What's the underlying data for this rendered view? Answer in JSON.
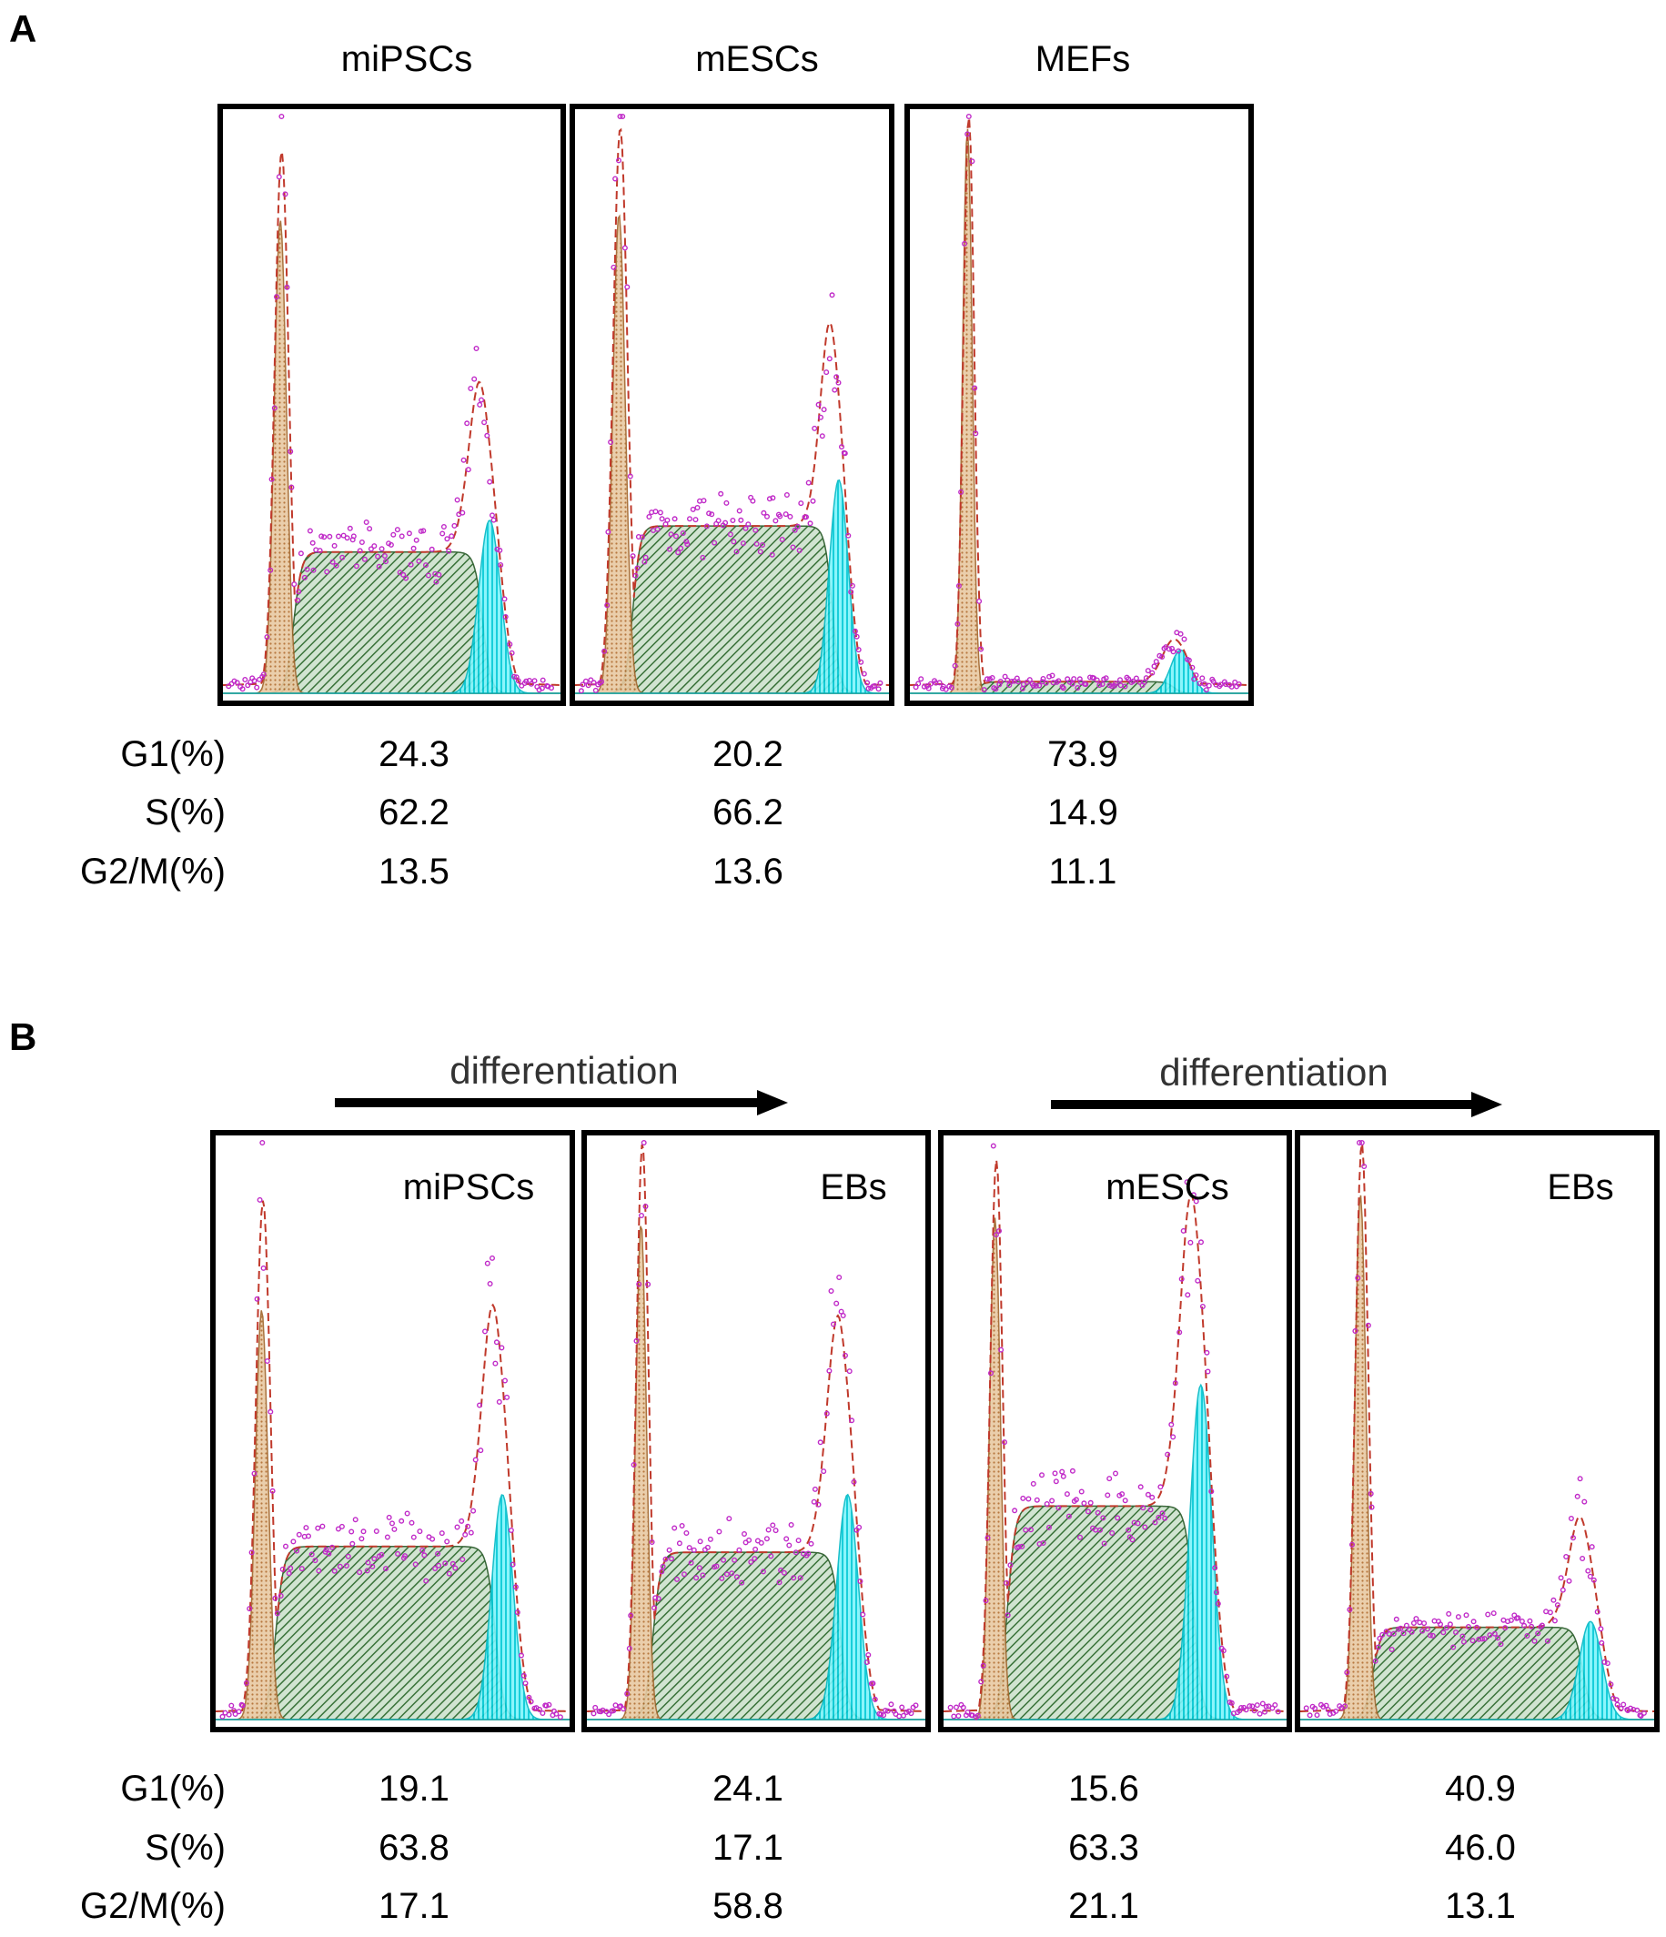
{
  "figure": {
    "panels": [
      {
        "letter": "A",
        "arrows": []
      },
      {
        "letter": "B",
        "arrows": [
          {
            "label": "differentiation"
          },
          {
            "label": "differentiation"
          }
        ]
      }
    ]
  },
  "colors": {
    "g1_fill": "#d9a66e",
    "s_fill": "#2f7a2f",
    "g2m_fill": "#00e5f0",
    "fit_line": "#c0392b",
    "data_points": "#c02ac8",
    "frame": "#000000"
  },
  "chart_data": [
    {
      "type": "area",
      "panel": "A",
      "title": "miPSCs",
      "stats": {
        "labels": [
          "G1(%)",
          "S(%)",
          "G2/M(%)"
        ],
        "values": [
          "24.3",
          "62.2",
          "13.5"
        ]
      },
      "model": {
        "g1_pos": 0.17,
        "g1_h": 0.82,
        "g1_w": 0.018,
        "s_level": 0.245,
        "g2_pos": 0.79,
        "g2_h": 0.3,
        "g2_w": 0.032,
        "fit_g1": 0.94,
        "fit_g2": 0.43
      }
    },
    {
      "type": "area",
      "panel": "A",
      "title": "mESCs",
      "stats": {
        "labels": [
          "G1(%)",
          "S(%)",
          "G2/M(%)"
        ],
        "values": [
          "20.2",
          "66.2",
          "13.6"
        ]
      },
      "model": {
        "g1_pos": 0.14,
        "g1_h": 0.83,
        "g1_w": 0.02,
        "s_level": 0.29,
        "g2_pos": 0.84,
        "g2_h": 0.37,
        "g2_w": 0.03,
        "fit_g1": 0.98,
        "fit_g2": 0.52
      }
    },
    {
      "type": "area",
      "panel": "A",
      "title": "MEFs",
      "stats": {
        "labels": [
          "G1(%)",
          "S(%)",
          "G2/M(%)"
        ],
        "values": [
          "73.9",
          "14.9",
          "11.1"
        ]
      },
      "model": {
        "g1_pos": 0.17,
        "g1_h": 0.98,
        "g1_w": 0.014,
        "s_level": 0.02,
        "g2_pos": 0.8,
        "g2_h": 0.075,
        "g2_w": 0.03,
        "fit_g1": 1.0,
        "fit_g2": 0.09
      }
    },
    {
      "type": "area",
      "panel": "B",
      "title": "miPSCs",
      "stats": {
        "labels": [
          "G1(%)",
          "S(%)",
          "G2/M(%)"
        ],
        "values": [
          "19.1",
          "63.8",
          "17.1"
        ]
      },
      "model": {
        "g1_pos": 0.13,
        "g1_h": 0.71,
        "g1_w": 0.018,
        "s_level": 0.3,
        "g2_pos": 0.81,
        "g2_h": 0.39,
        "g2_w": 0.03,
        "fit_g1": 0.9,
        "fit_g2": 0.6
      }
    },
    {
      "type": "area",
      "panel": "B",
      "title": "EBs",
      "stats": {
        "labels": [
          "G1(%)",
          "S(%)",
          "G2/M(%)"
        ],
        "values": [
          "24.1",
          "17.1",
          "58.8"
        ]
      },
      "model": {
        "g1_pos": 0.16,
        "g1_h": 0.86,
        "g1_w": 0.016,
        "s_level": 0.29,
        "g2_pos": 0.77,
        "g2_h": 0.39,
        "g2_w": 0.032,
        "fit_g1": 1.0,
        "fit_g2": 0.58
      }
    },
    {
      "type": "area",
      "panel": "B",
      "title": "mESCs",
      "stats": {
        "labels": [
          "G1(%)",
          "S(%)",
          "G2/M(%)"
        ],
        "values": [
          "15.6",
          "63.3",
          "21.1"
        ]
      },
      "model": {
        "g1_pos": 0.15,
        "g1_h": 0.87,
        "g1_w": 0.016,
        "s_level": 0.37,
        "g2_pos": 0.75,
        "g2_h": 0.58,
        "g2_w": 0.032,
        "fit_g1": 0.97,
        "fit_g2": 0.76
      }
    },
    {
      "type": "area",
      "panel": "B",
      "title": "EBs",
      "stats": {
        "labels": [
          "G1(%)",
          "S(%)",
          "G2/M(%)"
        ],
        "values": [
          "40.9",
          "46.0",
          "13.1"
        ]
      },
      "model": {
        "g1_pos": 0.17,
        "g1_h": 0.91,
        "g1_w": 0.016,
        "s_level": 0.16,
        "g2_pos": 0.82,
        "g2_h": 0.17,
        "g2_w": 0.032,
        "fit_g1": 1.0,
        "fit_g2": 0.28
      }
    }
  ]
}
